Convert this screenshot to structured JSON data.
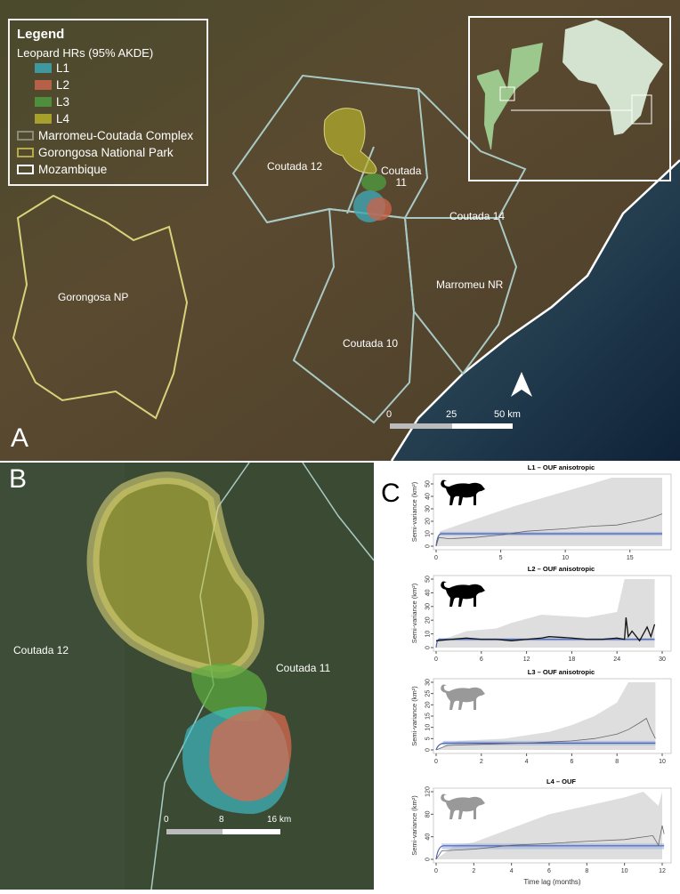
{
  "panel_a": {
    "letter": "A",
    "legend": {
      "title": "Legend",
      "subtitle": "Leopard HRs (95% AKDE)",
      "items": [
        {
          "label": "L1",
          "color": "#3ea6b4"
        },
        {
          "label": "L2",
          "color": "#c8644e"
        },
        {
          "label": "L3",
          "color": "#4f9a3e"
        },
        {
          "label": "L4",
          "color": "#b5b02c"
        },
        {
          "label": "Marromeu-Coutada Complex",
          "color": "#a9c9c4",
          "outline": true
        },
        {
          "label": "Gorongosa National Park",
          "color": "#d8d27a",
          "outline": true
        },
        {
          "label": "Mozambique",
          "color": "#ffffff",
          "outline": true
        }
      ]
    },
    "labels": {
      "coutada12": "Coutada 12",
      "coutada11": "Coutada\n11",
      "coutada14": "Coutada 14",
      "marromeu": "Marromeu NR",
      "coutada10": "Coutada 10",
      "gorongosa": "Gorongosa NP"
    },
    "scale": {
      "ticks": [
        "0",
        "25",
        "50 km"
      ]
    }
  },
  "panel_b": {
    "letter": "B",
    "labels": {
      "coutada12": "Coutada 12",
      "coutada11": "Coutada 11"
    },
    "scale": {
      "ticks": [
        "0",
        "8",
        "16 km"
      ]
    }
  },
  "panel_c": {
    "letter": "C"
  },
  "chart_data": [
    {
      "type": "line",
      "title": "L1 – OUF anisotropic",
      "ylabel": "Semi-variance (km²)",
      "xlabel": "",
      "xlim": [
        0,
        17.5
      ],
      "ylim": [
        0,
        55
      ],
      "xticks": [
        0,
        5,
        10,
        15
      ],
      "yticks": [
        0,
        10,
        20,
        30,
        40,
        50
      ],
      "silhouette": "black",
      "empirical": [
        [
          0,
          0
        ],
        [
          0.2,
          7
        ],
        [
          1,
          6
        ],
        [
          3,
          7
        ],
        [
          5,
          9
        ],
        [
          7,
          12
        ],
        [
          10,
          14
        ],
        [
          12,
          16
        ],
        [
          14,
          17
        ],
        [
          15,
          19
        ],
        [
          16,
          21
        ],
        [
          17,
          24
        ],
        [
          17.5,
          26
        ]
      ],
      "ci_upper": [
        [
          0,
          0
        ],
        [
          0.3,
          12
        ],
        [
          2,
          18
        ],
        [
          4,
          25
        ],
        [
          6,
          32
        ],
        [
          8,
          38
        ],
        [
          10,
          44
        ],
        [
          12,
          50
        ],
        [
          13.6,
          56
        ],
        [
          17.5,
          56
        ]
      ],
      "model_sill": 10,
      "model_band": [
        8.5,
        11.5
      ]
    },
    {
      "type": "line",
      "title": "L2 – OUF anisotropic",
      "ylabel": "Semi-variance (km²)",
      "xlabel": "",
      "xlim": [
        0,
        30
      ],
      "ylim": [
        0,
        50
      ],
      "xticks": [
        0,
        6,
        12,
        18,
        24,
        30
      ],
      "yticks": [
        0,
        10,
        20,
        30,
        40,
        50
      ],
      "silhouette": "black",
      "empirical": [
        [
          0,
          5
        ],
        [
          2,
          6
        ],
        [
          4,
          7
        ],
        [
          6,
          6
        ],
        [
          8,
          6
        ],
        [
          10,
          5
        ],
        [
          12,
          6
        ],
        [
          14,
          7
        ],
        [
          15,
          8
        ],
        [
          18,
          7
        ],
        [
          20,
          6
        ],
        [
          22,
          6
        ],
        [
          24,
          7
        ],
        [
          25,
          6
        ],
        [
          25.2,
          22
        ],
        [
          25.5,
          8
        ],
        [
          26,
          12
        ],
        [
          27,
          5
        ],
        [
          28,
          15
        ],
        [
          28.5,
          8
        ],
        [
          29,
          17
        ]
      ],
      "ci_upper": [
        [
          0,
          5
        ],
        [
          2,
          8
        ],
        [
          4,
          12
        ],
        [
          8,
          14
        ],
        [
          10,
          18
        ],
        [
          14,
          24
        ],
        [
          20,
          22
        ],
        [
          24,
          26
        ],
        [
          25,
          50
        ],
        [
          29,
          50
        ]
      ],
      "model_sill": 6,
      "model_band": [
        5,
        7
      ]
    },
    {
      "type": "line",
      "title": "L3 – OUF anisotropic",
      "ylabel": "Semi-variance (km²)",
      "xlabel": "",
      "xlim": [
        0,
        10
      ],
      "ylim": [
        0,
        30
      ],
      "xticks": [
        0,
        2,
        4,
        6,
        8,
        10
      ],
      "yticks": [
        0,
        5,
        10,
        15,
        20,
        25,
        30
      ],
      "silhouette": "grey",
      "empirical": [
        [
          0,
          0
        ],
        [
          0.5,
          2
        ],
        [
          2,
          2.5
        ],
        [
          4,
          3
        ],
        [
          6,
          4
        ],
        [
          7,
          5
        ],
        [
          8,
          7
        ],
        [
          8.5,
          9
        ],
        [
          9,
          12
        ],
        [
          9.3,
          14
        ],
        [
          9.5,
          9
        ],
        [
          9.7,
          5
        ]
      ],
      "ci_upper": [
        [
          0,
          0
        ],
        [
          1,
          4
        ],
        [
          3,
          5
        ],
        [
          5,
          8
        ],
        [
          6,
          11
        ],
        [
          7,
          15
        ],
        [
          8,
          21
        ],
        [
          8.5,
          30
        ],
        [
          9.7,
          30
        ]
      ],
      "model_sill": 3,
      "model_band": [
        2,
        4
      ]
    },
    {
      "type": "line",
      "title": "L4 – OUF",
      "ylabel": "Semi-variance (km²)",
      "xlabel": "Time lag (months)",
      "xlim": [
        0,
        12
      ],
      "ylim": [
        0,
        120
      ],
      "xticks": [
        0,
        2,
        4,
        6,
        8,
        10,
        12
      ],
      "yticks": [
        0,
        40,
        80,
        120
      ],
      "silhouette": "grey",
      "empirical": [
        [
          0,
          0
        ],
        [
          0.3,
          15
        ],
        [
          2,
          18
        ],
        [
          4,
          25
        ],
        [
          6,
          28
        ],
        [
          8,
          32
        ],
        [
          10,
          35
        ],
        [
          11.5,
          42
        ],
        [
          11.8,
          25
        ],
        [
          12,
          60
        ],
        [
          12.1,
          45
        ]
      ],
      "ci_upper": [
        [
          0,
          0
        ],
        [
          1,
          25
        ],
        [
          2,
          30
        ],
        [
          4,
          55
        ],
        [
          6,
          80
        ],
        [
          8,
          95
        ],
        [
          10,
          110
        ],
        [
          11,
          125
        ],
        [
          11.8,
          95
        ],
        [
          12,
          125
        ]
      ],
      "model_sill": 24,
      "model_band": [
        18,
        28
      ]
    }
  ]
}
